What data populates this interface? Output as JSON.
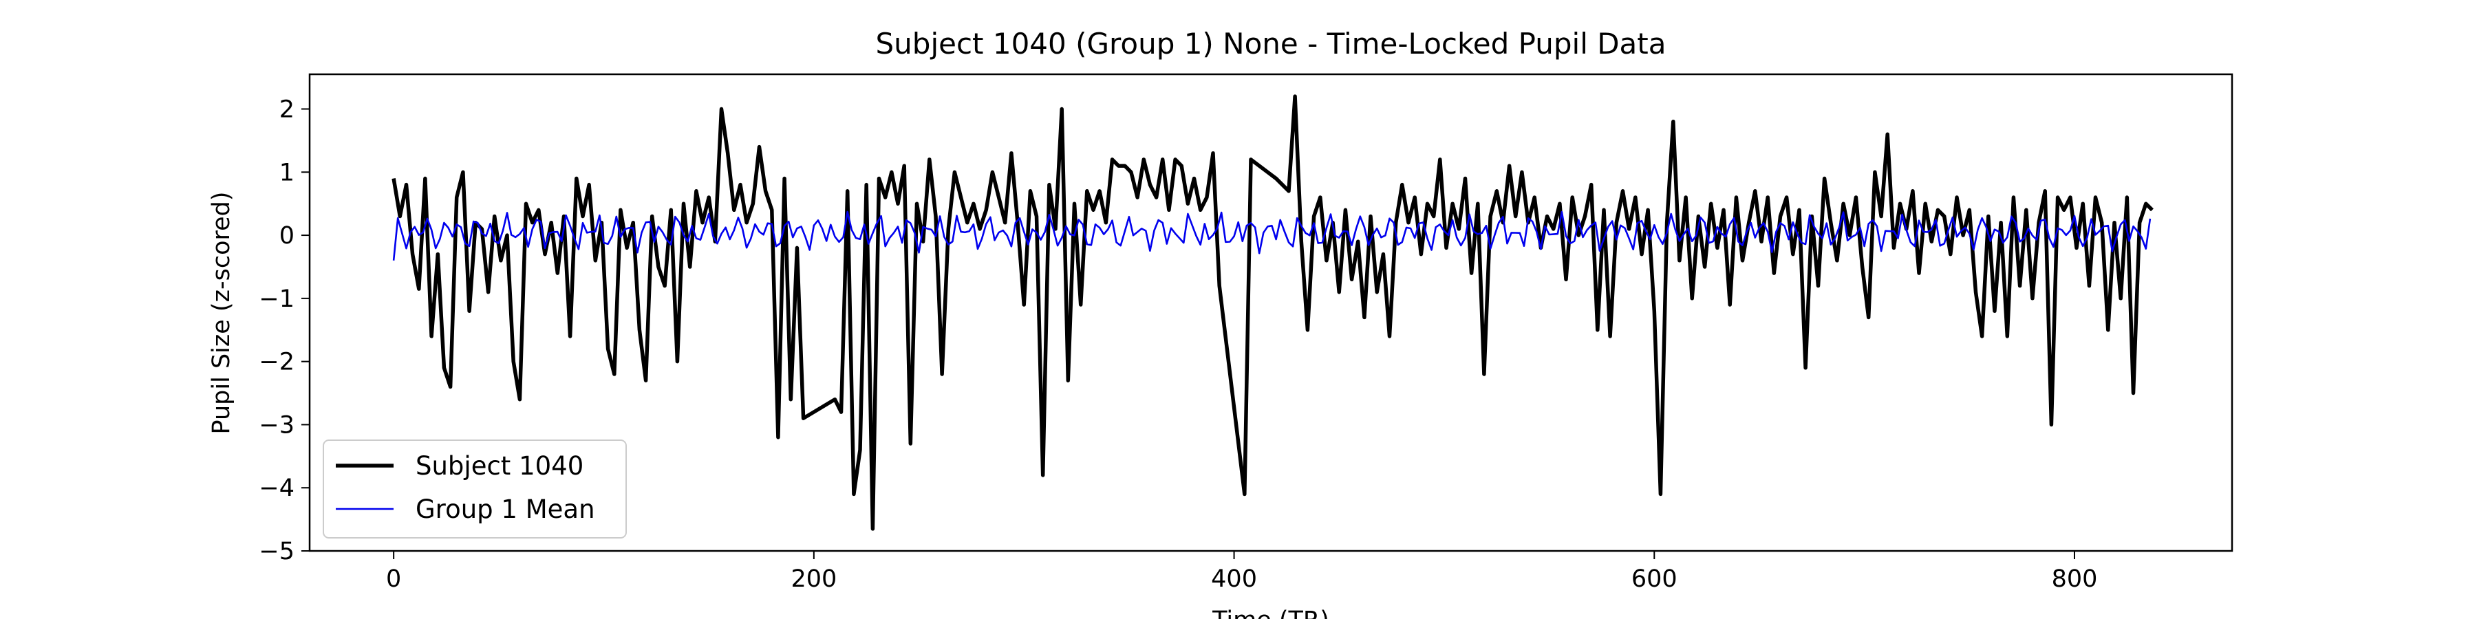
{
  "chart_data": {
    "type": "line",
    "title": "Subject 1040 (Group 1) None - Time-Locked Pupil Data",
    "xlabel": "Time (TR)",
    "ylabel": "Pupil Size (z-scored)",
    "xlim": [
      -40,
      875
    ],
    "ylim": [
      -5,
      2.55
    ],
    "x_ticks": [
      0,
      200,
      400,
      600,
      800
    ],
    "y_ticks": [
      2,
      1,
      0,
      -1,
      -2,
      -3,
      -4,
      -5
    ],
    "y_tick_labels": [
      "2",
      "1",
      "0",
      "−1",
      "−2",
      "−3",
      "−4",
      "−5"
    ],
    "grid": false,
    "legend_position": "lower-left",
    "series": [
      {
        "name": "Subject 1040",
        "color": "#000000",
        "points": [
          [
            0,
            0.9
          ],
          [
            3,
            0.3
          ],
          [
            6,
            0.8
          ],
          [
            9,
            -0.3
          ],
          [
            12,
            -0.85
          ],
          [
            15,
            0.9
          ],
          [
            18,
            -1.6
          ],
          [
            21,
            -0.3
          ],
          [
            24,
            -2.1
          ],
          [
            27,
            -2.4
          ],
          [
            30,
            0.6
          ],
          [
            33,
            1.0
          ],
          [
            36,
            -1.2
          ],
          [
            39,
            0.2
          ],
          [
            42,
            0.1
          ],
          [
            45,
            -0.9
          ],
          [
            48,
            0.3
          ],
          [
            51,
            -0.4
          ],
          [
            54,
            0.0
          ],
          [
            57,
            -2.0
          ],
          [
            60,
            -2.6
          ],
          [
            63,
            0.5
          ],
          [
            66,
            0.2
          ],
          [
            69,
            0.4
          ],
          [
            72,
            -0.3
          ],
          [
            75,
            0.2
          ],
          [
            78,
            -0.6
          ],
          [
            81,
            0.3
          ],
          [
            84,
            -1.6
          ],
          [
            87,
            0.9
          ],
          [
            90,
            0.3
          ],
          [
            93,
            0.8
          ],
          [
            96,
            -0.4
          ],
          [
            99,
            0.2
          ],
          [
            102,
            -1.8
          ],
          [
            105,
            -2.2
          ],
          [
            108,
            0.4
          ],
          [
            111,
            -0.2
          ],
          [
            114,
            0.2
          ],
          [
            117,
            -1.5
          ],
          [
            120,
            -2.3
          ],
          [
            123,
            0.3
          ],
          [
            126,
            -0.5
          ],
          [
            129,
            -0.8
          ],
          [
            132,
            0.4
          ],
          [
            135,
            -2.0
          ],
          [
            138,
            0.5
          ],
          [
            141,
            -0.5
          ],
          [
            144,
            0.7
          ],
          [
            147,
            0.2
          ],
          [
            150,
            0.6
          ],
          [
            153,
            -0.1
          ],
          [
            156,
            2.0
          ],
          [
            159,
            1.3
          ],
          [
            162,
            0.4
          ],
          [
            165,
            0.8
          ],
          [
            168,
            0.2
          ],
          [
            171,
            0.5
          ],
          [
            174,
            1.4
          ],
          [
            177,
            0.7
          ],
          [
            180,
            0.4
          ],
          [
            183,
            -3.2
          ],
          [
            186,
            0.9
          ],
          [
            189,
            -2.6
          ],
          [
            192,
            -0.2
          ],
          [
            195,
            -2.9
          ],
          [
            210,
            -2.6
          ],
          [
            213,
            -2.8
          ],
          [
            216,
            0.7
          ],
          [
            219,
            -4.1
          ],
          [
            222,
            -3.4
          ],
          [
            225,
            0.8
          ],
          [
            228,
            -4.65
          ],
          [
            231,
            0.9
          ],
          [
            234,
            0.6
          ],
          [
            237,
            1.0
          ],
          [
            240,
            0.5
          ],
          [
            243,
            1.1
          ],
          [
            246,
            -3.3
          ],
          [
            249,
            0.5
          ],
          [
            252,
            -0.1
          ],
          [
            255,
            1.2
          ],
          [
            258,
            0.3
          ],
          [
            261,
            -2.2
          ],
          [
            264,
            0.1
          ],
          [
            267,
            1.0
          ],
          [
            270,
            0.6
          ],
          [
            273,
            0.2
          ],
          [
            276,
            0.5
          ],
          [
            279,
            0.1
          ],
          [
            282,
            0.4
          ],
          [
            285,
            1.0
          ],
          [
            288,
            0.6
          ],
          [
            291,
            0.2
          ],
          [
            294,
            1.3
          ],
          [
            297,
            0.2
          ],
          [
            300,
            -1.1
          ],
          [
            303,
            0.7
          ],
          [
            306,
            0.3
          ],
          [
            309,
            -3.8
          ],
          [
            312,
            0.8
          ],
          [
            315,
            0.1
          ],
          [
            318,
            2.0
          ],
          [
            321,
            -2.3
          ],
          [
            324,
            0.5
          ],
          [
            327,
            -1.1
          ],
          [
            330,
            0.7
          ],
          [
            333,
            0.4
          ],
          [
            336,
            0.7
          ],
          [
            339,
            0.2
          ],
          [
            342,
            1.2
          ],
          [
            345,
            1.1
          ],
          [
            348,
            1.1
          ],
          [
            351,
            1.0
          ],
          [
            354,
            0.6
          ],
          [
            357,
            1.2
          ],
          [
            360,
            0.8
          ],
          [
            363,
            0.6
          ],
          [
            366,
            1.2
          ],
          [
            369,
            0.4
          ],
          [
            372,
            1.2
          ],
          [
            375,
            1.1
          ],
          [
            378,
            0.5
          ],
          [
            381,
            0.9
          ],
          [
            384,
            0.4
          ],
          [
            387,
            0.6
          ],
          [
            390,
            1.3
          ],
          [
            393,
            -0.8
          ],
          [
            405,
            -4.1
          ],
          [
            408,
            1.2
          ],
          [
            420,
            0.9
          ],
          [
            426,
            0.7
          ],
          [
            429,
            2.2
          ],
          [
            432,
            -0.1
          ],
          [
            435,
            -1.5
          ],
          [
            438,
            0.3
          ],
          [
            441,
            0.6
          ],
          [
            444,
            -0.4
          ],
          [
            447,
            0.2
          ],
          [
            450,
            -0.9
          ],
          [
            453,
            0.4
          ],
          [
            456,
            -0.7
          ],
          [
            459,
            -0.1
          ],
          [
            462,
            -1.3
          ],
          [
            465,
            0.3
          ],
          [
            468,
            -0.9
          ],
          [
            471,
            -0.3
          ],
          [
            474,
            -1.6
          ],
          [
            477,
            0.2
          ],
          [
            480,
            0.8
          ],
          [
            483,
            0.2
          ],
          [
            486,
            0.6
          ],
          [
            489,
            -0.3
          ],
          [
            492,
            0.5
          ],
          [
            495,
            0.3
          ],
          [
            498,
            1.2
          ],
          [
            501,
            -0.2
          ],
          [
            504,
            0.5
          ],
          [
            507,
            0.1
          ],
          [
            510,
            0.9
          ],
          [
            513,
            -0.6
          ],
          [
            516,
            0.5
          ],
          [
            519,
            -2.2
          ],
          [
            522,
            0.3
          ],
          [
            525,
            0.7
          ],
          [
            528,
            0.2
          ],
          [
            531,
            1.1
          ],
          [
            534,
            0.3
          ],
          [
            537,
            1.0
          ],
          [
            540,
            0.2
          ],
          [
            543,
            0.6
          ],
          [
            546,
            -0.2
          ],
          [
            549,
            0.3
          ],
          [
            552,
            0.1
          ],
          [
            555,
            0.5
          ],
          [
            558,
            -0.7
          ],
          [
            561,
            0.6
          ],
          [
            564,
            0.0
          ],
          [
            567,
            0.3
          ],
          [
            570,
            0.8
          ],
          [
            573,
            -1.5
          ],
          [
            576,
            0.4
          ],
          [
            579,
            -1.6
          ],
          [
            582,
            0.2
          ],
          [
            585,
            0.7
          ],
          [
            588,
            0.1
          ],
          [
            591,
            0.6
          ],
          [
            594,
            -0.3
          ],
          [
            597,
            0.4
          ],
          [
            600,
            -1.2
          ],
          [
            603,
            -4.1
          ],
          [
            606,
            0.2
          ],
          [
            609,
            1.8
          ],
          [
            612,
            -0.4
          ],
          [
            615,
            0.6
          ],
          [
            618,
            -1.0
          ],
          [
            621,
            0.3
          ],
          [
            624,
            -0.5
          ],
          [
            627,
            0.5
          ],
          [
            630,
            -0.2
          ],
          [
            633,
            0.4
          ],
          [
            636,
            -1.1
          ],
          [
            639,
            0.6
          ],
          [
            642,
            -0.4
          ],
          [
            645,
            0.2
          ],
          [
            648,
            0.7
          ],
          [
            651,
            -0.1
          ],
          [
            654,
            0.6
          ],
          [
            657,
            -0.6
          ],
          [
            660,
            0.3
          ],
          [
            663,
            0.6
          ],
          [
            666,
            -0.3
          ],
          [
            669,
            0.4
          ],
          [
            672,
            -2.1
          ],
          [
            675,
            0.3
          ],
          [
            678,
            -0.8
          ],
          [
            681,
            0.9
          ],
          [
            684,
            0.2
          ],
          [
            687,
            -0.4
          ],
          [
            690,
            0.5
          ],
          [
            693,
            0.0
          ],
          [
            696,
            0.6
          ],
          [
            699,
            -0.5
          ],
          [
            702,
            -1.3
          ],
          [
            705,
            1.0
          ],
          [
            708,
            0.3
          ],
          [
            711,
            1.6
          ],
          [
            714,
            -0.2
          ],
          [
            717,
            0.5
          ],
          [
            720,
            0.1
          ],
          [
            723,
            0.7
          ],
          [
            726,
            -0.6
          ],
          [
            729,
            0.5
          ],
          [
            732,
            -0.1
          ],
          [
            735,
            0.4
          ],
          [
            738,
            0.3
          ],
          [
            741,
            -0.3
          ],
          [
            744,
            0.6
          ],
          [
            747,
            0.0
          ],
          [
            750,
            0.4
          ],
          [
            753,
            -0.9
          ],
          [
            756,
            -1.6
          ],
          [
            759,
            0.3
          ],
          [
            762,
            -1.2
          ],
          [
            765,
            0.2
          ],
          [
            768,
            -1.6
          ],
          [
            771,
            0.6
          ],
          [
            774,
            -0.8
          ],
          [
            777,
            0.4
          ],
          [
            780,
            -1.0
          ],
          [
            783,
            0.2
          ],
          [
            786,
            0.7
          ],
          [
            789,
            -3.0
          ],
          [
            792,
            0.6
          ],
          [
            795,
            0.4
          ],
          [
            798,
            0.6
          ],
          [
            801,
            -0.2
          ],
          [
            804,
            0.5
          ],
          [
            807,
            -0.8
          ],
          [
            810,
            0.6
          ],
          [
            813,
            0.2
          ],
          [
            816,
            -1.5
          ],
          [
            819,
            0.2
          ],
          [
            822,
            -1.0
          ],
          [
            825,
            0.6
          ],
          [
            828,
            -2.5
          ],
          [
            831,
            0.2
          ],
          [
            834,
            0.5
          ],
          [
            837,
            0.4
          ]
        ]
      },
      {
        "name": "Group 1 Mean",
        "color": "#0000ee",
        "pattern": {
          "start": 0,
          "end": 837,
          "step": 2,
          "amplitude": 0.3
        }
      }
    ]
  }
}
